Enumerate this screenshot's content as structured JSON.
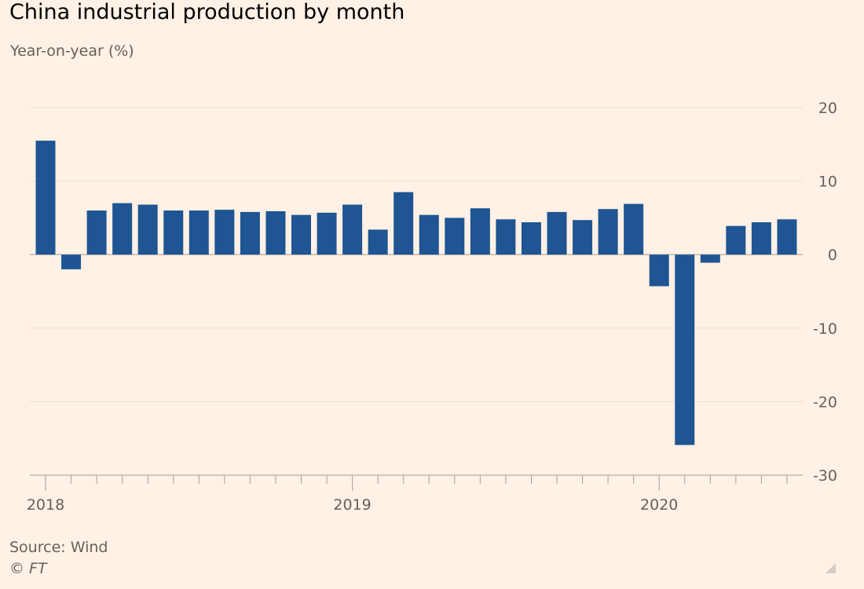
{
  "title": "China industrial production by month",
  "subtitle": "Year-on-year (%)",
  "source": "Source: Wind",
  "copyright": "© FT",
  "colors": {
    "bar": "#1f5592",
    "background": "#fff1e5",
    "grid": "#e9dfd5",
    "axis": "#a69f99",
    "text": "#66605c"
  },
  "chart_data": {
    "type": "bar",
    "title": "China industrial production by month",
    "ylabel": "Year-on-year (%)",
    "ylim": [
      -30,
      20
    ],
    "yticks": [
      20,
      10,
      0,
      -10,
      -20,
      -30
    ],
    "y_axis_side": "right",
    "grid": true,
    "categories": [
      "2018-01",
      "2018-02",
      "2018-03",
      "2018-04",
      "2018-05",
      "2018-06",
      "2018-07",
      "2018-08",
      "2018-09",
      "2018-10",
      "2018-11",
      "2018-12",
      "2019-01",
      "2019-02",
      "2019-03",
      "2019-04",
      "2019-05",
      "2019-06",
      "2019-07",
      "2019-08",
      "2019-09",
      "2019-10",
      "2019-11",
      "2019-12",
      "2020-01",
      "2020-02",
      "2020-03",
      "2020-04",
      "2020-05",
      "2020-06"
    ],
    "values": [
      15.5,
      -2.0,
      6.0,
      7.0,
      6.8,
      6.0,
      6.0,
      6.1,
      5.8,
      5.9,
      5.4,
      5.7,
      6.8,
      3.4,
      8.5,
      5.4,
      5.0,
      6.3,
      4.8,
      4.4,
      5.8,
      4.7,
      6.2,
      6.9,
      -4.3,
      -25.9,
      -1.1,
      3.9,
      4.4,
      4.8
    ],
    "x_tick_labels": [
      "2018",
      "2019",
      "2020"
    ]
  }
}
